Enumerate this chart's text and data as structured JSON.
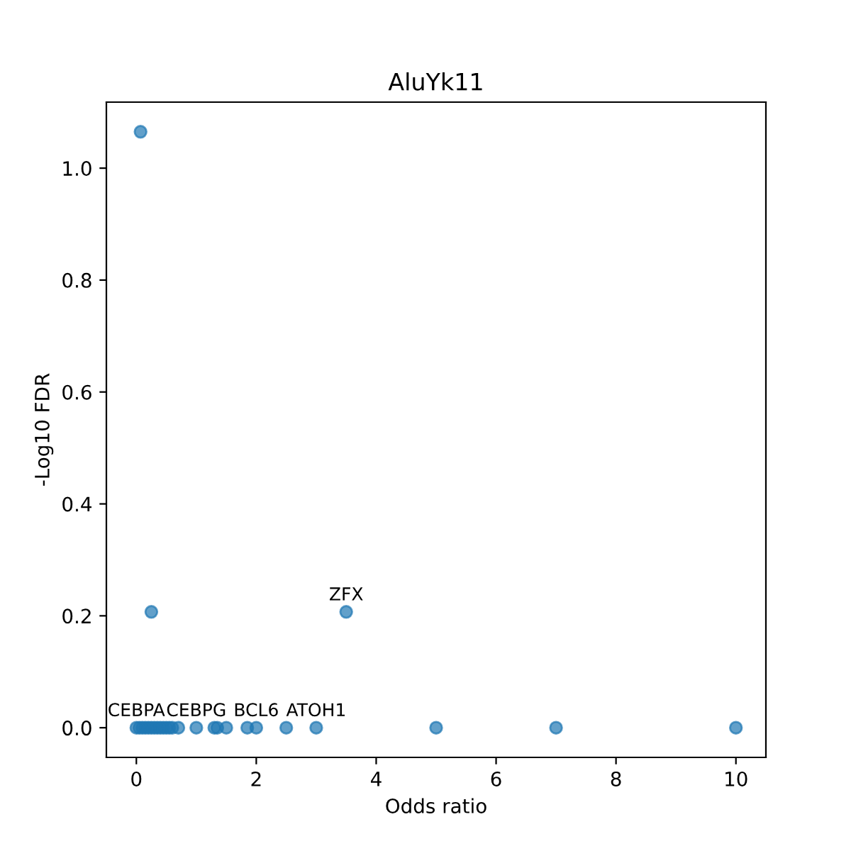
{
  "chart_data": {
    "type": "scatter",
    "title": "AluYk11",
    "xlabel": "Odds ratio",
    "ylabel": "-Log10 FDR",
    "x": [
      0.07,
      0.25,
      3.5,
      0,
      0.05,
      0.1,
      0.15,
      0.2,
      0.25,
      0.3,
      0.35,
      0.4,
      0.45,
      0.5,
      0.55,
      0.6,
      0.7,
      1.0,
      1.3,
      1.35,
      1.5,
      1.85,
      2.0,
      2.5,
      3.0,
      5.0,
      7.0,
      10.0
    ],
    "values": [
      1.065,
      0.207,
      0.207,
      0,
      0,
      0,
      0,
      0,
      0,
      0,
      0,
      0,
      0,
      0,
      0,
      0,
      0,
      0,
      0,
      0,
      0,
      0,
      0,
      0,
      0,
      0,
      0,
      0
    ],
    "color": "#1f77b4",
    "marker": "circle",
    "xlim": [
      -0.5,
      10.5
    ],
    "xticks": [
      0,
      2,
      4,
      6,
      8,
      10
    ],
    "ylim": [
      -0.053,
      1.118
    ],
    "yticks": [
      {
        "value": 0,
        "label": "0.0"
      },
      0.2,
      0.4,
      0.6,
      0.8,
      {
        "value": 1,
        "label": "1.0"
      }
    ],
    "annotations": [
      {
        "text": "CEBPA",
        "x": 0,
        "y": 0
      },
      {
        "text": "CEBPG",
        "x": 1.0,
        "y": 0
      },
      {
        "text": "BCL6",
        "x": 2.0,
        "y": 0
      },
      {
        "text": "ATOH1",
        "x": 3.0,
        "y": 0
      },
      {
        "text": "ZFX",
        "x": 3.5,
        "y": 0.207
      }
    ],
    "grid": false,
    "legend": false
  }
}
